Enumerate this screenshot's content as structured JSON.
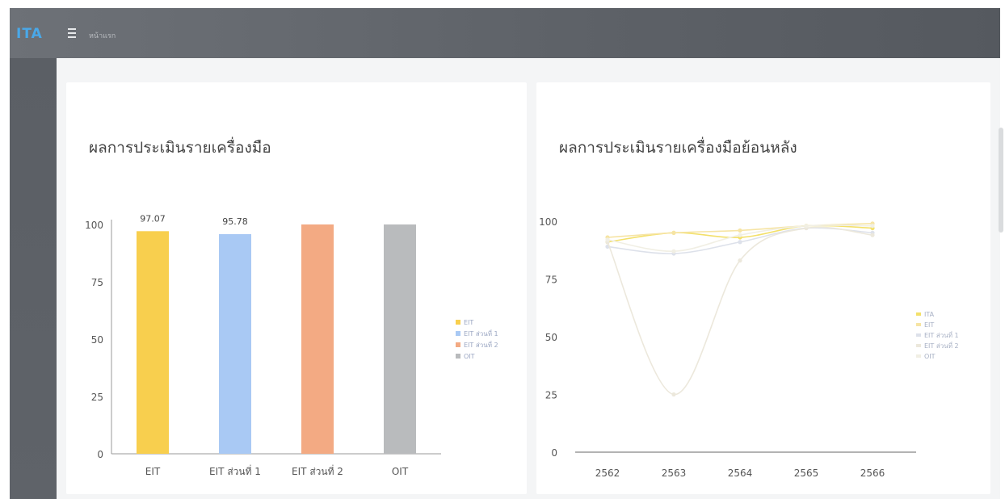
{
  "header": {
    "logo": "ITA",
    "breadcrumb": "หน้าแรก"
  },
  "colors": {
    "bar_eit": "#f8cf4e",
    "bar_eit1": "#a9c9f4",
    "bar_eit2": "#f3aa83",
    "bar_oit": "#b9bbbd",
    "line_colors": [
      "#f3e06a",
      "#f6e4a4",
      "#dde1ea",
      "#ece8dc",
      "#f1efe4"
    ]
  },
  "left_card": {
    "title": "ผลการประเมินรายเครื่องมือ",
    "chart_data": {
      "type": "bar",
      "categories": [
        "EIT",
        "EIT ส่วนที่ 1",
        "EIT ส่วนที่ 2",
        "OIT"
      ],
      "values": [
        97.07,
        95.78,
        100,
        100
      ],
      "data_labels": [
        "97.07",
        "95.78",
        "",
        ""
      ],
      "ylim": [
        0,
        100
      ],
      "yticks": [
        0,
        25,
        50,
        75,
        100
      ],
      "legend": [
        "EIT",
        "EIT ส่วนที่ 1",
        "EIT ส่วนที่ 2",
        "OIT"
      ],
      "legend_position": "right",
      "grid": false
    }
  },
  "right_card": {
    "title": "ผลการประเมินรายเครื่องมือย้อนหลัง",
    "chart_data": {
      "type": "line",
      "x": [
        "2562",
        "2563",
        "2564",
        "2565",
        "2566"
      ],
      "series": [
        {
          "name": "ITA",
          "values": [
            91,
            95,
            93,
            98,
            97
          ]
        },
        {
          "name": "EIT",
          "values": [
            93,
            95,
            96,
            98,
            99
          ]
        },
        {
          "name": "EIT ส่วนที่ 1",
          "values": [
            89,
            86,
            91,
            97,
            95
          ]
        },
        {
          "name": "EIT ส่วนที่ 2",
          "values": [
            91,
            25,
            83,
            97,
            94
          ]
        },
        {
          "name": "OIT",
          "values": [
            92,
            87,
            94,
            98,
            98
          ]
        }
      ],
      "ylim": [
        0,
        100
      ],
      "yticks": [
        0,
        25,
        50,
        75,
        100
      ],
      "legend_position": "right",
      "grid": false
    }
  }
}
